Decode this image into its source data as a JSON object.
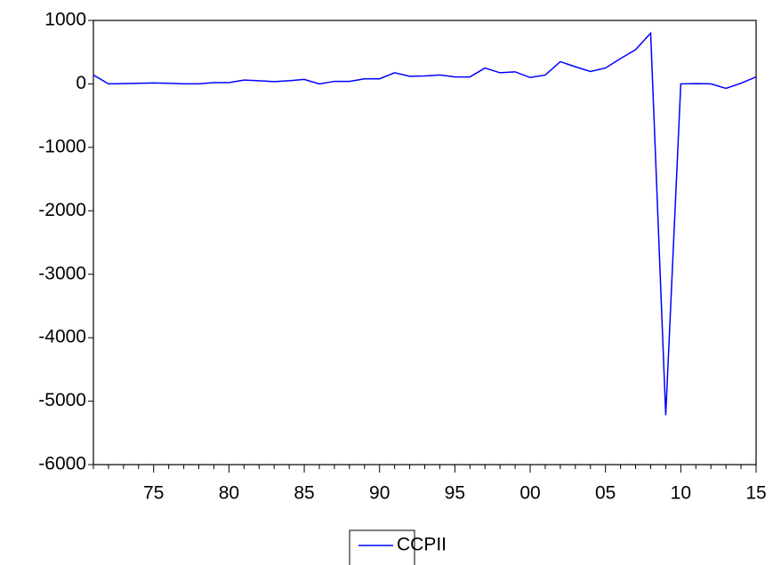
{
  "chart_data": {
    "type": "line",
    "categories": [
      null,
      null,
      null,
      null,
      "75",
      null,
      null,
      null,
      null,
      "80",
      null,
      null,
      null,
      null,
      "85",
      null,
      null,
      null,
      null,
      "90",
      null,
      null,
      null,
      null,
      "95",
      null,
      null,
      null,
      null,
      "00",
      null,
      null,
      null,
      null,
      "05",
      null,
      null,
      null,
      null,
      "10",
      null,
      null,
      null,
      null,
      "15"
    ],
    "series": [
      {
        "name": "CCPII",
        "color": "#0000ff",
        "values": [
          140,
          0,
          5,
          10,
          15,
          10,
          0,
          0,
          20,
          20,
          60,
          50,
          35,
          50,
          70,
          0,
          40,
          40,
          80,
          80,
          175,
          120,
          125,
          140,
          110,
          110,
          250,
          175,
          190,
          100,
          140,
          350,
          270,
          195,
          250,
          400,
          540,
          800,
          -5220,
          0,
          5,
          0,
          -70,
          10,
          110
        ]
      }
    ],
    "ylim": [
      -6000,
      1000
    ],
    "yticks": [
      -6000,
      -5000,
      -4000,
      -3000,
      -2000,
      -1000,
      0,
      1000
    ],
    "grid": false,
    "legend": "bottom"
  }
}
